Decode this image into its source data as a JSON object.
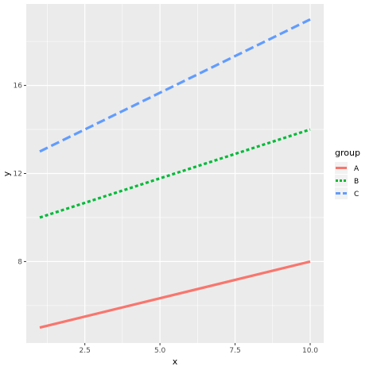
{
  "chart_data": {
    "type": "line",
    "xlabel": "x",
    "ylabel": "y",
    "xlim": [
      0.55,
      10.45
    ],
    "ylim": [
      4.3,
      19.7
    ],
    "x_ticks": [
      2.5,
      5.0,
      7.5,
      10.0
    ],
    "x_tick_labels": [
      "2.5",
      "5.0",
      "7.5",
      "10.0"
    ],
    "y_ticks": [
      8,
      12,
      16
    ],
    "y_tick_labels": [
      "8",
      "12",
      "16"
    ],
    "grid": true,
    "legend": {
      "title": "group",
      "placement": "right"
    },
    "series": [
      {
        "name": "A",
        "x": [
          1,
          10
        ],
        "values": [
          5,
          8
        ],
        "color": "#F8766D",
        "linetype": "solid"
      },
      {
        "name": "B",
        "x": [
          1,
          10
        ],
        "values": [
          10,
          14
        ],
        "color": "#00BA38",
        "linetype": "dotted"
      },
      {
        "name": "C",
        "x": [
          1,
          10
        ],
        "values": [
          13,
          19
        ],
        "color": "#619CFF",
        "linetype": "dashed"
      }
    ]
  }
}
